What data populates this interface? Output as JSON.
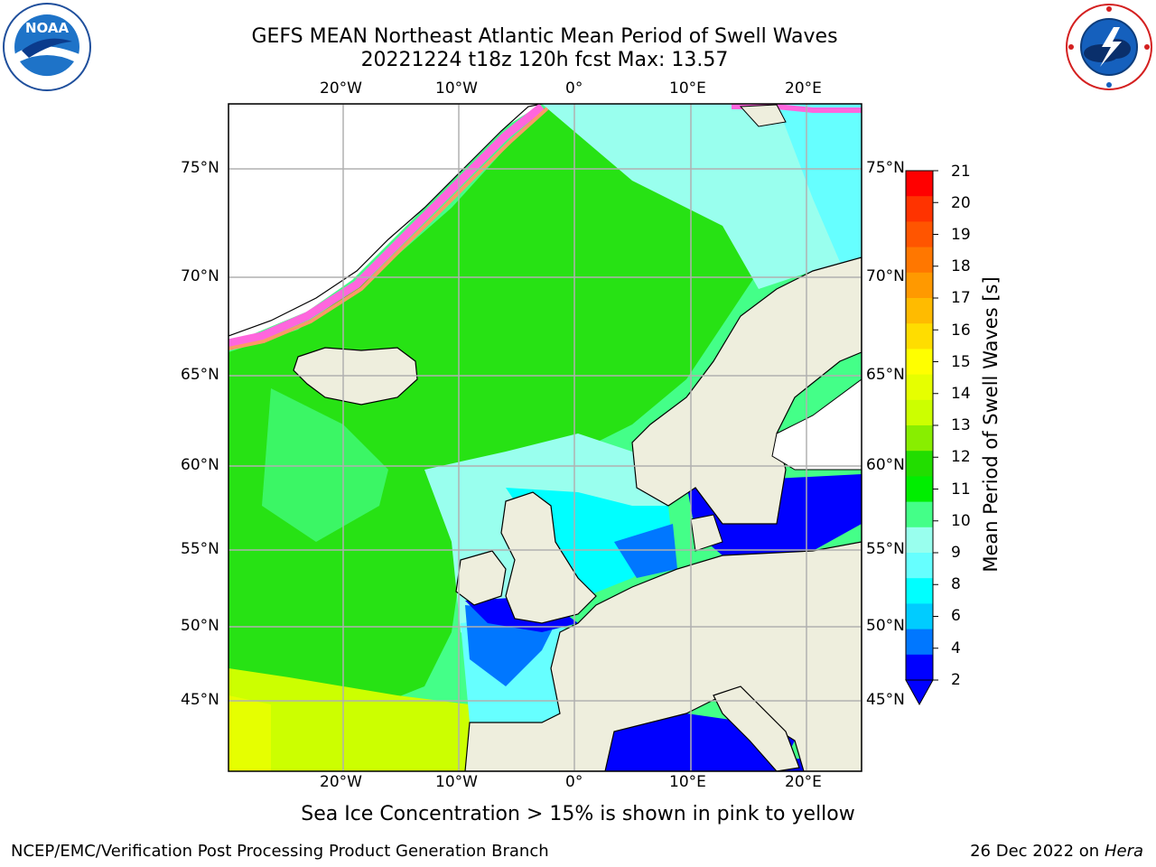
{
  "header": {
    "title_line1": "GEFS MEAN Northeast Atlantic Mean Period of Swell Waves",
    "title_line2": "20221224 t18z 120h fcst   Max: 13.57"
  },
  "logos": {
    "left": "noaa-logo",
    "right": "nws-logo"
  },
  "map": {
    "lon_labels": [
      "20°W",
      "10°W",
      "0°",
      "10°E",
      "20°E"
    ],
    "lat_labels": [
      "75°N",
      "70°N",
      "65°N",
      "60°N",
      "55°N",
      "50°N",
      "45°N"
    ]
  },
  "colorbar": {
    "label": "Mean Period of Swell Waves [s]",
    "ticks": [
      "21",
      "20",
      "19",
      "18",
      "17",
      "16",
      "15",
      "14",
      "13",
      "12",
      "11",
      "10",
      "9",
      "8",
      "6",
      "4",
      "2"
    ],
    "colors": [
      "#ff0000",
      "#ff3300",
      "#ff5500",
      "#ff7700",
      "#ff9900",
      "#ffbb00",
      "#ffdd00",
      "#ffff00",
      "#e6ff00",
      "#ccff00",
      "#88ee00",
      "#22dd00",
      "#00ee00",
      "#44ff88",
      "#99ffee",
      "#66ffff",
      "#00ffff",
      "#00ccff",
      "#0077ff",
      "#0000ff"
    ],
    "under_color": "#0000ff"
  },
  "footer": {
    "note": "Sea Ice Concentration > 15% is shown in pink to yellow",
    "credit": "NCEP/EMC/Verification Post Processing Product Generation Branch",
    "date_text": "26 Dec 2022 on",
    "machine": "Hera"
  }
}
